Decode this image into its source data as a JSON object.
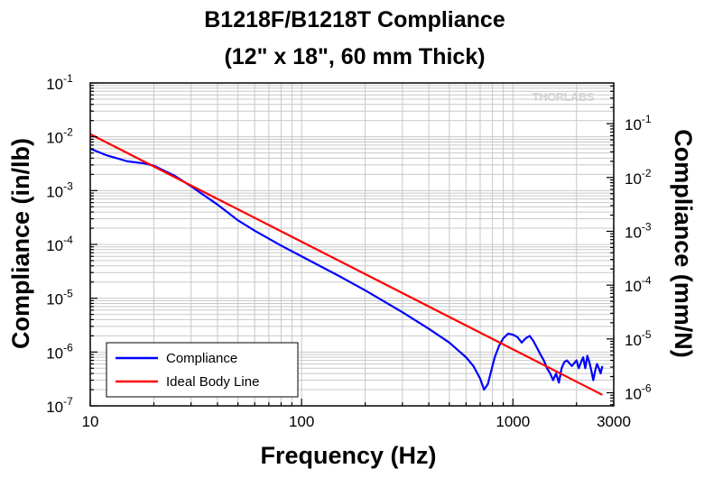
{
  "chart_data": {
    "type": "line",
    "title_line1": "B1218F/B1218T Compliance",
    "title_line2": "(12\" x 18\", 60 mm Thick)",
    "xlabel": "Frequency (Hz)",
    "ylabel_left": "Compliance (in/lb)",
    "ylabel_right": "Compliance (mm/N)",
    "x_scale": "log",
    "y_scale": "log",
    "xlim": [
      10,
      3000
    ],
    "ylim_left": [
      1e-07,
      0.1
    ],
    "ylim_right_mm_per_N": [
      5.71e-07,
      0.571
    ],
    "grid": true,
    "legend_position": "bottom-left",
    "watermark": "THORLABS",
    "x_ticks": [
      {
        "value": 10,
        "label": "10"
      },
      {
        "value": 100,
        "label": "100"
      },
      {
        "value": 1000,
        "label": "1000"
      },
      {
        "value": 3000,
        "label": "3000"
      }
    ],
    "y_ticks_left": [
      {
        "value": 1e-07,
        "base": "10",
        "exp": "-7"
      },
      {
        "value": 1e-06,
        "base": "10",
        "exp": "-6"
      },
      {
        "value": 1e-05,
        "base": "10",
        "exp": "-5"
      },
      {
        "value": 0.0001,
        "base": "10",
        "exp": "-4"
      },
      {
        "value": 0.001,
        "base": "10",
        "exp": "-3"
      },
      {
        "value": 0.01,
        "base": "10",
        "exp": "-2"
      },
      {
        "value": 0.1,
        "base": "10",
        "exp": "-1"
      }
    ],
    "y_ticks_right": [
      {
        "value": 1e-06,
        "base": "10",
        "exp": "-6"
      },
      {
        "value": 1e-05,
        "base": "10",
        "exp": "-5"
      },
      {
        "value": 0.0001,
        "base": "10",
        "exp": "-4"
      },
      {
        "value": 0.001,
        "base": "10",
        "exp": "-3"
      },
      {
        "value": 0.01,
        "base": "10",
        "exp": "-2"
      },
      {
        "value": 0.1,
        "base": "10",
        "exp": "-1"
      }
    ],
    "series": [
      {
        "name": "Compliance",
        "color": "#0000ff",
        "x": [
          10,
          12,
          15,
          18,
          20,
          25,
          30,
          40,
          50,
          60,
          80,
          100,
          150,
          200,
          300,
          400,
          500,
          600,
          650,
          700,
          730,
          760,
          790,
          820,
          860,
          900,
          950,
          1000,
          1050,
          1100,
          1150,
          1200,
          1250,
          1300,
          1350,
          1400,
          1450,
          1500,
          1550,
          1600,
          1650,
          1700,
          1750,
          1800,
          1900,
          2000,
          2050,
          2100,
          2150,
          2200,
          2250,
          2300,
          2350,
          2400,
          2450,
          2500,
          2550,
          2600,
          2650
        ],
        "values": [
          0.006,
          0.0045,
          0.0035,
          0.0032,
          0.0029,
          0.0019,
          0.0012,
          0.00055,
          0.00028,
          0.00018,
          9.5e-05,
          6e-05,
          2.6e-05,
          1.4e-05,
          5.5e-06,
          2.7e-06,
          1.5e-06,
          8e-07,
          5.5e-07,
          3.2e-07,
          2e-07,
          2.5e-07,
          4.5e-07,
          8e-07,
          1.3e-06,
          1.8e-06,
          2.2e-06,
          2.1e-06,
          1.9e-06,
          1.5e-06,
          1.8e-06,
          2e-06,
          1.6e-06,
          1.2e-06,
          9e-07,
          7e-07,
          5e-07,
          4e-07,
          3e-07,
          4e-07,
          2.7e-07,
          5e-07,
          6.5e-07,
          7e-07,
          5.5e-07,
          7e-07,
          5e-07,
          6.5e-07,
          8e-07,
          5e-07,
          8.5e-07,
          6.5e-07,
          4.5e-07,
          3e-07,
          4.5e-07,
          6e-07,
          5e-07,
          4e-07,
          5.5e-07
        ]
      },
      {
        "name": "Ideal Body Line",
        "color": "#ff0000",
        "x": [
          10,
          2650
        ],
        "values": [
          0.0112,
          1.6e-07
        ]
      }
    ]
  }
}
